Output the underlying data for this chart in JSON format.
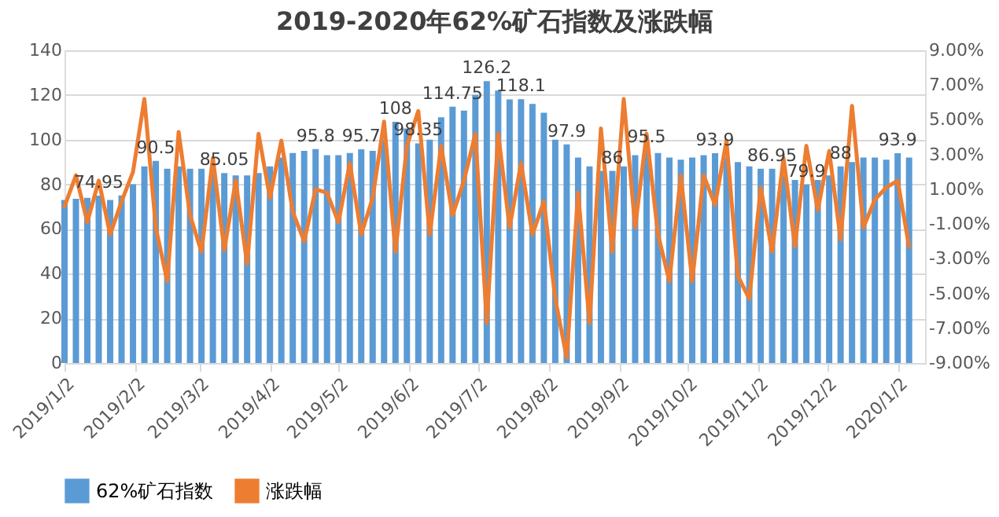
{
  "chart_data": {
    "type": "bar",
    "title": "2019-2020年62%矿石指数及涨跌幅",
    "x": [
      "2019-01-02",
      "2019-01-07",
      "2019-01-12",
      "2019-01-17",
      "2019-01-22",
      "2019-01-27",
      "2019-02-01",
      "2019-02-06",
      "2019-02-11",
      "2019-02-16",
      "2019-02-21",
      "2019-02-26",
      "2019-03-03",
      "2019-03-08",
      "2019-03-13",
      "2019-03-18",
      "2019-03-23",
      "2019-03-28",
      "2019-04-02",
      "2019-04-07",
      "2019-04-12",
      "2019-04-17",
      "2019-04-22",
      "2019-04-27",
      "2019-05-02",
      "2019-05-07",
      "2019-05-12",
      "2019-05-17",
      "2019-05-22",
      "2019-05-27",
      "2019-06-01",
      "2019-06-06",
      "2019-06-11",
      "2019-06-16",
      "2019-06-21",
      "2019-06-26",
      "2019-07-01",
      "2019-07-06",
      "2019-07-11",
      "2019-07-16",
      "2019-07-21",
      "2019-07-26",
      "2019-07-31",
      "2019-08-05",
      "2019-08-10",
      "2019-08-15",
      "2019-08-20",
      "2019-08-25",
      "2019-08-30",
      "2019-09-04",
      "2019-09-09",
      "2019-09-14",
      "2019-09-19",
      "2019-09-24",
      "2019-09-29",
      "2019-10-04",
      "2019-10-09",
      "2019-10-14",
      "2019-10-19",
      "2019-10-24",
      "2019-10-29",
      "2019-11-03",
      "2019-11-08",
      "2019-11-13",
      "2019-11-18",
      "2019-11-23",
      "2019-11-28",
      "2019-12-03",
      "2019-12-08",
      "2019-12-13",
      "2019-12-18",
      "2019-12-23",
      "2019-12-28",
      "2020-01-02",
      "2020-01-07"
    ],
    "series": [
      {
        "name": "62%矿石指数",
        "color": "#5b9bd5",
        "values": [
          73,
          73.5,
          74,
          74.95,
          73,
          75,
          80,
          88,
          90.5,
          87,
          88,
          87,
          87,
          86,
          85.05,
          84,
          84,
          85,
          88,
          92,
          94,
          95,
          95.8,
          93,
          93,
          94,
          95.7,
          95,
          100,
          108,
          105,
          98.35,
          100,
          110,
          114.75,
          113,
          120,
          126.2,
          122,
          118,
          118.1,
          116,
          112,
          100,
          97.9,
          92,
          88,
          86,
          86,
          88,
          93,
          95.5,
          94,
          92,
          91,
          92,
          93,
          93.9,
          92,
          90,
          88,
          87,
          86.95,
          84,
          82,
          79.9,
          82,
          84,
          88,
          90,
          92,
          92,
          91,
          93.9,
          92
        ]
      },
      {
        "name": "涨跌幅",
        "type": "line",
        "axis": "y2",
        "color": "#ed7d31",
        "values": [
          0,
          1.8,
          -0.9,
          1.5,
          -1.6,
          0.3,
          2.0,
          6.2,
          -1.2,
          -4.3,
          4.3,
          -0.5,
          -2.6,
          2.8,
          -2.5,
          1.5,
          -3.3,
          4.2,
          0.5,
          3.8,
          -0.3,
          -2.0,
          1.0,
          0.8,
          -0.9,
          2.5,
          -1.6,
          0.5,
          4.9,
          -2.6,
          3.5,
          5.5,
          -1.6,
          3.5,
          -0.5,
          1.5,
          4.2,
          -6.7,
          4.2,
          -1.2,
          2.5,
          -1.6,
          0.3,
          -5.3,
          -8.7,
          0.8,
          -6.7,
          4.5,
          -2.6,
          6.2,
          -1.2,
          4.2,
          -1.6,
          -4.3,
          1.8,
          -4.3,
          1.8,
          0.1,
          3.8,
          -4.0,
          -5.3,
          1.1,
          -2.6,
          2.8,
          -2.3,
          3.5,
          -0.2,
          3.2,
          -1.9,
          5.8,
          -1.2,
          0.4,
          1.1,
          1.5,
          -2.3
        ]
      }
    ],
    "xlim": [
      "2019-01-02",
      "2020-01-14"
    ],
    "xticks": [
      {
        "value": "2019-01-02",
        "label": "2019/1/2"
      },
      {
        "value": "2019-02-02",
        "label": "2019/2/2"
      },
      {
        "value": "2019-03-02",
        "label": "2019/3/2"
      },
      {
        "value": "2019-04-02",
        "label": "2019/4/2"
      },
      {
        "value": "2019-05-02",
        "label": "2019/5/2"
      },
      {
        "value": "2019-06-02",
        "label": "2019/6/2"
      },
      {
        "value": "2019-07-02",
        "label": "2019/7/2"
      },
      {
        "value": "2019-08-02",
        "label": "2019/8/2"
      },
      {
        "value": "2019-09-02",
        "label": "2019/9/2"
      },
      {
        "value": "2019-10-02",
        "label": "2019/10/2"
      },
      {
        "value": "2019-11-02",
        "label": "2019/11/2"
      },
      {
        "value": "2019-12-02",
        "label": "2019/12/2"
      },
      {
        "value": "2020-01-02",
        "label": "2020/1/2"
      }
    ],
    "ylim": [
      0,
      140
    ],
    "yticks": [
      0,
      20,
      40,
      60,
      80,
      100,
      120,
      140
    ],
    "y2lim": [
      -9,
      9
    ],
    "y2ticks": [
      {
        "value": -9,
        "label": "-9.00%"
      },
      {
        "value": -7,
        "label": "-7.00%"
      },
      {
        "value": -5,
        "label": "-5.00%"
      },
      {
        "value": -3,
        "label": "-3.00%"
      },
      {
        "value": -1,
        "label": "-1.00%"
      },
      {
        "value": 1,
        "label": "1.00%"
      },
      {
        "value": 3,
        "label": "3.00%"
      },
      {
        "value": 5,
        "label": "5.00%"
      },
      {
        "value": 7,
        "label": "7.00%"
      },
      {
        "value": 9,
        "label": "9.00%"
      }
    ],
    "annotations": [
      {
        "text": "74.95",
        "x": "2019-01-17",
        "y": 74.95
      },
      {
        "text": "90.5",
        "x": "2019-02-11",
        "y": 90.5
      },
      {
        "text": "85.05",
        "x": "2019-03-13",
        "y": 85.05
      },
      {
        "text": "95.8",
        "x": "2019-04-22",
        "y": 95.8
      },
      {
        "text": "95.7",
        "x": "2019-05-12",
        "y": 95.7
      },
      {
        "text": "108",
        "x": "2019-05-27",
        "y": 108
      },
      {
        "text": "98.35",
        "x": "2019-06-06",
        "y": 98.35
      },
      {
        "text": "114.75",
        "x": "2019-06-21",
        "y": 114.75
      },
      {
        "text": "126.2",
        "x": "2019-07-06",
        "y": 126.2
      },
      {
        "text": "118.1",
        "x": "2019-07-21",
        "y": 118.1
      },
      {
        "text": "97.9",
        "x": "2019-08-10",
        "y": 97.9
      },
      {
        "text": "86",
        "x": "2019-08-30",
        "y": 86
      },
      {
        "text": "95.5",
        "x": "2019-09-14",
        "y": 95.5
      },
      {
        "text": "93.9",
        "x": "2019-10-14",
        "y": 93.9
      },
      {
        "text": "86.95",
        "x": "2019-11-08",
        "y": 86.95
      },
      {
        "text": "79.9",
        "x": "2019-11-23",
        "y": 79.9
      },
      {
        "text": "88",
        "x": "2019-12-08",
        "y": 88
      },
      {
        "text": "93.9",
        "x": "2020-01-02",
        "y": 93.9
      }
    ],
    "grid": "y",
    "legend": "bottom",
    "line_style": "solid",
    "marker": "none"
  }
}
